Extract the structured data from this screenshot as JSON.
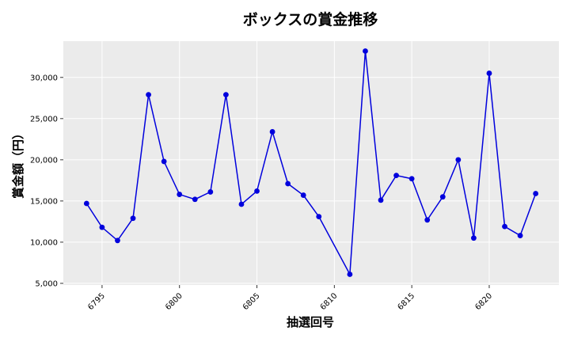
{
  "chart_data": {
    "type": "line",
    "title": "ボックスの賞金推移",
    "xlabel": "抽選回号",
    "ylabel": "賞金額（円）",
    "xlim": [
      6792.5,
      6824.5
    ],
    "ylim": [
      4800,
      34400
    ],
    "x_ticks": [
      6795,
      6800,
      6805,
      6810,
      6815,
      6820
    ],
    "x_tick_labels": [
      "6795",
      "6800",
      "6805",
      "6810",
      "6815",
      "6820"
    ],
    "y_ticks": [
      5000,
      10000,
      15000,
      20000,
      25000,
      30000
    ],
    "y_tick_labels": [
      "5,000",
      "10,000",
      "15,000",
      "20,000",
      "25,000",
      "30,000"
    ],
    "grid": true,
    "series": [
      {
        "color": "#0000dd",
        "x": [
          6794,
          6795,
          6796,
          6797,
          6798,
          6799,
          6800,
          6801,
          6802,
          6803,
          6804,
          6805,
          6806,
          6807,
          6808,
          6809,
          6811,
          6812,
          6813,
          6814,
          6815,
          6816,
          6817,
          6818,
          6819,
          6820,
          6821,
          6822,
          6823
        ],
        "y": [
          14700,
          11800,
          10200,
          12900,
          27900,
          19800,
          15800,
          15200,
          16100,
          27900,
          14600,
          16200,
          23400,
          17100,
          15700,
          13100,
          6100,
          33200,
          15100,
          18100,
          17700,
          12700,
          15500,
          20000,
          10500,
          30500,
          11900,
          10800,
          15900
        ]
      }
    ]
  }
}
